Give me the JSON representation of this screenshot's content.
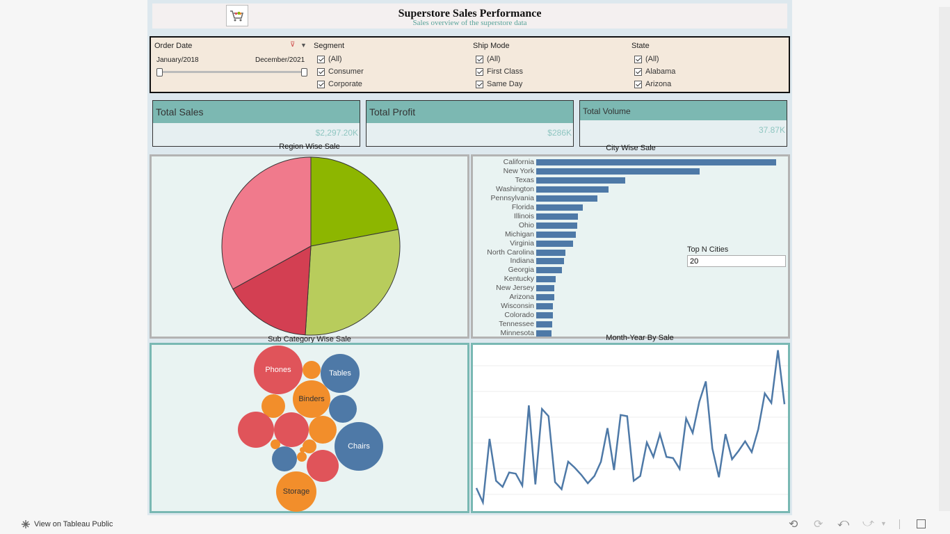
{
  "header": {
    "title": "Superstore Sales Performance",
    "subtitle": "Sales overview of the superstore data",
    "logo_icon": "shopping-cart-icon"
  },
  "filters": {
    "order_date": {
      "title": "Order Date",
      "start": "January/2018",
      "end": "December/2021"
    },
    "segment": {
      "title": "Segment",
      "items": [
        "(All)",
        "Consumer",
        "Corporate"
      ]
    },
    "ship_mode": {
      "title": "Ship Mode",
      "items": [
        "(All)",
        "First Class",
        "Same Day"
      ]
    },
    "state": {
      "title": "State",
      "items": [
        "(All)",
        "Alabama",
        "Arizona"
      ]
    }
  },
  "kpis": [
    {
      "label": "Total Sales",
      "value": "$2,297.20K"
    },
    {
      "label": "Total Profit",
      "value": "$286K"
    },
    {
      "label": "Total Volume",
      "value": "37.87K"
    }
  ],
  "region_chart": {
    "title": "Region Wise Sale",
    "chart_data": {
      "type": "pie",
      "values": [
        22,
        29,
        16,
        33
      ],
      "colors": [
        "#8db600",
        "#b8cc5c",
        "#d33f52",
        "#f07a8c"
      ]
    }
  },
  "city_chart": {
    "title": "City Wise Sale",
    "top_n_label": "Top N Cities",
    "top_n_value": "20",
    "chart_data": {
      "type": "bar",
      "categories": [
        "California",
        "New York",
        "Texas",
        "Washington",
        "Pennsylvania",
        "Florida",
        "Illinois",
        "Ohio",
        "Michigan",
        "Virginia",
        "North Carolina",
        "Indiana",
        "Georgia",
        "Kentucky",
        "New Jersey",
        "Arizona",
        "Wisconsin",
        "Colorado",
        "Tennessee",
        "Minnesota"
      ],
      "values": [
        457,
        311,
        170,
        138,
        117,
        89,
        80,
        78,
        76,
        70,
        55,
        53,
        49,
        37,
        35,
        35,
        32,
        32,
        31,
        29
      ],
      "color": "#4e79a7"
    }
  },
  "subcategory_chart": {
    "title": "Sub Category Wise Sale",
    "bubbles": [
      {
        "label": "Phones",
        "color": "#e0545a"
      },
      {
        "label": "",
        "color": "#f28e2b"
      },
      {
        "label": "Tables",
        "color": "#4e79a7"
      },
      {
        "label": "Binders",
        "color": "#f28e2b"
      },
      {
        "label": "",
        "color": "#f28e2b"
      },
      {
        "label": "",
        "color": "#4e79a7"
      },
      {
        "label": "",
        "color": "#e0545a"
      },
      {
        "label": "",
        "color": "#e0545a"
      },
      {
        "label": "",
        "color": "#f28e2b"
      },
      {
        "label": "Chairs",
        "color": "#4e79a7"
      },
      {
        "label": "",
        "color": "#f28e2b"
      },
      {
        "label": "",
        "color": "#f28e2b"
      },
      {
        "label": "",
        "color": "#f28e2b"
      },
      {
        "label": "",
        "color": "#f28e2b"
      },
      {
        "label": "",
        "color": "#4e79a7"
      },
      {
        "label": "",
        "color": "#e0545a"
      },
      {
        "label": "Storage",
        "color": "#f28e2b"
      }
    ]
  },
  "month_chart": {
    "title": "Month-Year By Sale",
    "chart_data": {
      "type": "line",
      "values": [
        14,
        2,
        55,
        20,
        15,
        27,
        26,
        16,
        83,
        17,
        80,
        74,
        19,
        13,
        36,
        31,
        25,
        18,
        24,
        36,
        64,
        29,
        75,
        74,
        20,
        24,
        52,
        40,
        59,
        40,
        39,
        30,
        72,
        60,
        86,
        103,
        47,
        23,
        59,
        38,
        45,
        53,
        44,
        63,
        93,
        85,
        129,
        84
      ],
      "color": "#4e79a7"
    }
  },
  "footer": {
    "view_label": "View on Tableau Public",
    "icons": [
      "tableau-logo-icon",
      "undo-icon",
      "redo-icon",
      "revert-icon",
      "refresh-icon",
      "dropdown-icon",
      "fullscreen-icon"
    ]
  }
}
